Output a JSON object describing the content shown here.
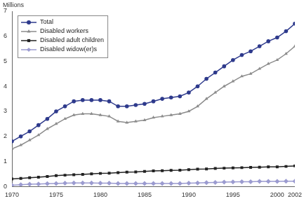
{
  "chart_data": {
    "type": "line",
    "y_label": "Millions",
    "x": [
      1970,
      1971,
      1972,
      1973,
      1974,
      1975,
      1976,
      1977,
      1978,
      1979,
      1980,
      1981,
      1982,
      1983,
      1984,
      1985,
      1986,
      1987,
      1988,
      1989,
      1990,
      1991,
      1992,
      1993,
      1994,
      1995,
      1996,
      1997,
      1998,
      1999,
      2000,
      2001,
      2002
    ],
    "series": [
      {
        "name": "Total",
        "color": "#2e3a8c",
        "marker": "circle",
        "values": [
          1.8,
          2.0,
          2.2,
          2.45,
          2.7,
          3.0,
          3.2,
          3.4,
          3.45,
          3.45,
          3.45,
          3.4,
          3.2,
          3.2,
          3.25,
          3.3,
          3.4,
          3.5,
          3.55,
          3.6,
          3.75,
          4.0,
          4.3,
          4.55,
          4.8,
          5.05,
          5.25,
          5.4,
          5.6,
          5.8,
          5.95,
          6.2,
          6.5
        ]
      },
      {
        "name": "Disabled workers",
        "color": "#8c8c8c",
        "marker": "triangle",
        "values": [
          1.5,
          1.65,
          1.85,
          2.05,
          2.3,
          2.5,
          2.7,
          2.85,
          2.9,
          2.9,
          2.85,
          2.8,
          2.6,
          2.55,
          2.6,
          2.65,
          2.75,
          2.8,
          2.85,
          2.9,
          3.0,
          3.2,
          3.5,
          3.75,
          4.0,
          4.2,
          4.4,
          4.5,
          4.7,
          4.9,
          5.05,
          5.3,
          5.6
        ]
      },
      {
        "name": "Disabled adult children",
        "color": "#222222",
        "marker": "square",
        "values": [
          0.3,
          0.32,
          0.35,
          0.37,
          0.4,
          0.43,
          0.45,
          0.47,
          0.48,
          0.5,
          0.52,
          0.53,
          0.55,
          0.57,
          0.58,
          0.6,
          0.62,
          0.63,
          0.64,
          0.65,
          0.67,
          0.69,
          0.7,
          0.72,
          0.73,
          0.74,
          0.75,
          0.76,
          0.77,
          0.78,
          0.78,
          0.8,
          0.82
        ]
      },
      {
        "name": "Disabled widow(er)s",
        "color": "#9b9bd0",
        "marker": "diamond",
        "values": [
          0.05,
          0.07,
          0.09,
          0.1,
          0.11,
          0.12,
          0.13,
          0.14,
          0.14,
          0.14,
          0.13,
          0.13,
          0.12,
          0.12,
          0.12,
          0.12,
          0.12,
          0.12,
          0.12,
          0.12,
          0.13,
          0.14,
          0.15,
          0.16,
          0.17,
          0.18,
          0.19,
          0.19,
          0.2,
          0.2,
          0.2,
          0.21,
          0.21
        ]
      }
    ],
    "xlim": [
      1970,
      2002
    ],
    "xticks": [
      1970,
      1975,
      1980,
      1985,
      1990,
      1995,
      2000,
      2002
    ],
    "ylim": [
      0,
      7
    ],
    "yticks": [
      0,
      1,
      2,
      3,
      4,
      5,
      6,
      7
    ],
    "grid": false,
    "legend": "upper left"
  }
}
